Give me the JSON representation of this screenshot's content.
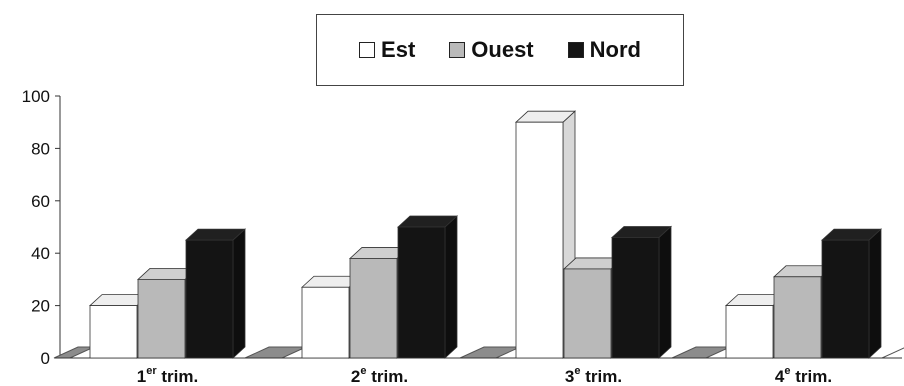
{
  "chart_data": {
    "type": "bar",
    "title": "",
    "xlabel": "",
    "ylabel": "",
    "ylim": [
      0,
      100
    ],
    "yticks": [
      0,
      20,
      40,
      60,
      80,
      100
    ],
    "categories": [
      {
        "base": "1",
        "sup": "er",
        "rest": " trim."
      },
      {
        "base": "2",
        "sup": "e",
        "rest": " trim."
      },
      {
        "base": "3",
        "sup": "e",
        "rest": " trim."
      },
      {
        "base": "4",
        "sup": "e",
        "rest": " trim."
      }
    ],
    "series": [
      {
        "name": "Est",
        "color": "#ffffff",
        "values": [
          20,
          27,
          90,
          20
        ]
      },
      {
        "name": "Ouest",
        "color": "#b9b9b9",
        "values": [
          30,
          38,
          34,
          31
        ]
      },
      {
        "name": "Nord",
        "color": "#141414",
        "values": [
          45,
          50,
          46,
          45
        ]
      }
    ],
    "legend_position": "top-center",
    "grid": false,
    "style": "3d-clustered"
  }
}
